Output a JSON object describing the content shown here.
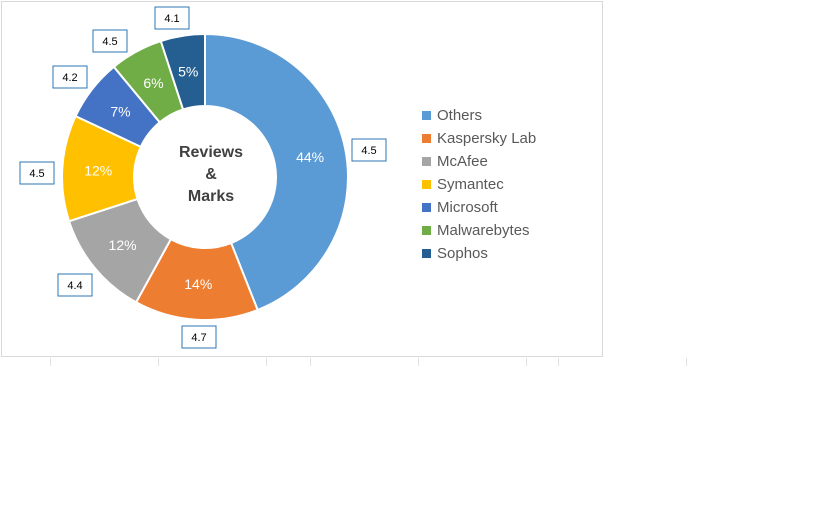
{
  "chart_data": {
    "type": "pie",
    "donut": true,
    "center_title": [
      "Reviews",
      "&",
      "Marks"
    ],
    "legend_position": "right",
    "slices": [
      {
        "name": "Others",
        "percent": 44,
        "label": "44%",
        "rating": "4.5",
        "color": "#5b9bd5"
      },
      {
        "name": "Kaspersky Lab",
        "percent": 14,
        "label": "14%",
        "rating": "4.7",
        "color": "#ed7d31"
      },
      {
        "name": "McAfee",
        "percent": 12,
        "label": "12%",
        "rating": "4.4",
        "color": "#a5a5a5"
      },
      {
        "name": "Symantec",
        "percent": 12,
        "label": "12%",
        "rating": "4.5",
        "color": "#ffc000"
      },
      {
        "name": "Microsoft",
        "percent": 7,
        "label": "7%",
        "rating": "4.2",
        "color": "#4472c4"
      },
      {
        "name": "Malwarebytes",
        "percent": 6,
        "label": "6%",
        "rating": "4.5",
        "color": "#70ad47"
      },
      {
        "name": "Sophos",
        "percent": 5,
        "label": "5%",
        "rating": "4.1",
        "color": "#255e91"
      }
    ]
  }
}
